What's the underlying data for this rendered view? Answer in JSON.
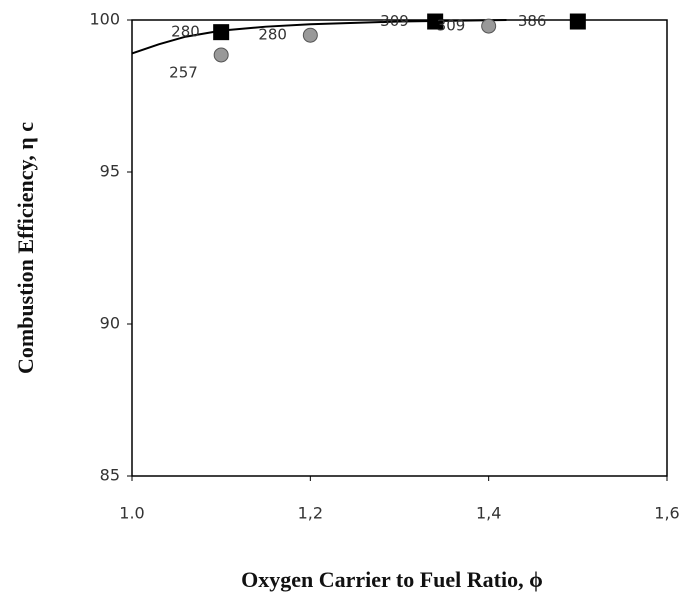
{
  "chart_data": {
    "type": "scatter",
    "x_label": "Oxygen Carrier to Fuel Ratio, ϕ",
    "y_label": "Combustion Efficiency, η c",
    "xlim": [
      1.0,
      1.6
    ],
    "xticks": [
      {
        "value": 1.0,
        "label": "1.0"
      },
      {
        "value": 1.2,
        "label": "1,2"
      },
      {
        "value": 1.4,
        "label": "1,4"
      },
      {
        "value": 1.6,
        "label": "1,6"
      }
    ],
    "ylim": [
      85,
      100
    ],
    "yticks": [
      85,
      90,
      95,
      100
    ],
    "grid": false,
    "series": [
      {
        "mode": "line",
        "color": "#000000",
        "x": [
          1.0,
          1.03,
          1.06,
          1.1,
          1.15,
          1.2,
          1.3,
          1.42
        ],
        "values": [
          98.9,
          99.2,
          99.45,
          99.65,
          99.78,
          99.86,
          99.95,
          100.0
        ]
      },
      {
        "mode": "marker",
        "marker": "square",
        "color": "#000000",
        "x": [
          1.1,
          1.34,
          1.5
        ],
        "values": [
          99.6,
          99.95,
          99.95
        ],
        "point_labels": [
          "280",
          "309",
          "386"
        ]
      },
      {
        "mode": "marker",
        "marker": "circle",
        "color": "#999999",
        "x": [
          1.1,
          1.2,
          1.4
        ],
        "values": [
          98.85,
          99.5,
          99.8
        ],
        "point_labels": [
          "257",
          "280",
          "309"
        ]
      }
    ]
  }
}
